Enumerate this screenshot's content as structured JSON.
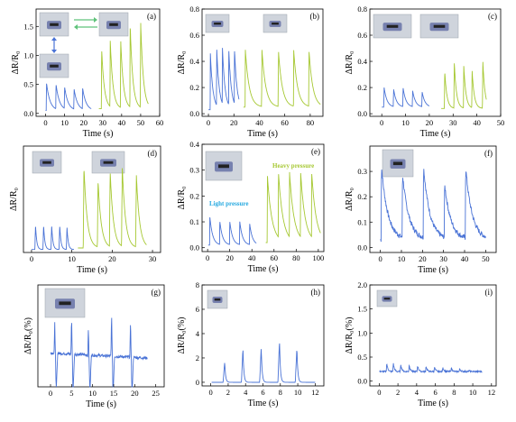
{
  "colors": {
    "blue": "#4a73d6",
    "green": "#a6c832",
    "axis": "#000000",
    "arrow_green": "#5fc27a",
    "arrow_blue": "#4a73d6"
  },
  "chart_data": [
    {
      "type": "line",
      "panel_label": "(a)",
      "xlabel": "Time (s)",
      "ylabel": "ΔR/R₀",
      "xlim": [
        -5,
        60
      ],
      "ylim": [
        -0.05,
        1.8
      ],
      "xticks": [
        0,
        10,
        20,
        30,
        40,
        50,
        60
      ],
      "yticks": [
        0.0,
        0.5,
        1.0,
        1.5
      ],
      "ytick_labels": [
        "0.0",
        "0.5",
        "1.0",
        "1.5"
      ],
      "photos": [
        "finger-bending-photo",
        "finger-straight-photo",
        "finger-grip-photo"
      ],
      "arrows": true,
      "series": [
        {
          "color": "blue",
          "baseline": 0.05,
          "decay": 1.8,
          "peaks": [
            [
              0.5,
              0.52
            ],
            [
              5.5,
              0.47
            ],
            [
              10,
              0.42
            ],
            [
              15,
              0.39
            ],
            [
              19.5,
              0.4
            ]
          ],
          "x_end": 24
        },
        {
          "color": "green",
          "baseline": 0.08,
          "decay": 1.4,
          "peaks": [
            [
              29.5,
              1.1
            ],
            [
              34,
              1.22
            ],
            [
              39.5,
              1.25
            ],
            [
              44.5,
              1.48
            ],
            [
              50,
              1.55
            ]
          ],
          "x_end": 54
        }
      ]
    },
    {
      "type": "line",
      "panel_label": "(b)",
      "xlabel": "Time (s)",
      "ylabel": "ΔR/R₀",
      "xlim": [
        -5,
        90
      ],
      "ylim": [
        -0.02,
        0.8
      ],
      "xticks": [
        0,
        20,
        40,
        60,
        80
      ],
      "yticks": [
        0.0,
        0.2,
        0.4,
        0.6,
        0.8
      ],
      "ytick_labels": [
        "0.0",
        "0.2",
        "0.4",
        "0.6",
        "0.8"
      ],
      "photos": [
        "wrist-bent-photo",
        "wrist-flat-photo"
      ],
      "series": [
        {
          "color": "blue",
          "baseline": 0.03,
          "decay": 2.0,
          "peaks": [
            [
              1.5,
              0.46
            ],
            [
              6.5,
              0.46
            ],
            [
              11,
              0.46
            ],
            [
              16,
              0.45
            ],
            [
              20.5,
              0.44
            ]
          ],
          "x_end": 24
        },
        {
          "color": "green",
          "baseline": 0.05,
          "decay": 3.0,
          "peaks": [
            [
              29,
              0.49
            ],
            [
              42,
              0.49
            ],
            [
              55,
              0.48
            ],
            [
              67,
              0.48
            ],
            [
              79,
              0.48
            ]
          ],
          "x_end": 88
        }
      ]
    },
    {
      "type": "line",
      "panel_label": "(c)",
      "xlabel": "Time (s)",
      "ylabel": "ΔR/R₀",
      "xlim": [
        -5,
        50
      ],
      "ylim": [
        -0.02,
        0.8
      ],
      "xticks": [
        0,
        10,
        20,
        30,
        40,
        50
      ],
      "yticks": [
        0.0,
        0.2,
        0.4,
        0.6,
        0.8
      ],
      "ytick_labels": [
        "0.0",
        "0.2",
        "0.4",
        "0.6",
        "0.8"
      ],
      "photos": [
        "elbow-bent-photo",
        "elbow-straight-photo"
      ],
      "series": [
        {
          "color": "blue",
          "baseline": 0.05,
          "decay": 1.2,
          "peaks": [
            [
              1,
              0.2
            ],
            [
              5,
              0.18
            ],
            [
              9,
              0.19
            ],
            [
              13,
              0.17
            ],
            [
              17,
              0.16
            ]
          ],
          "x_end": 20
        },
        {
          "color": "green",
          "baseline": 0.04,
          "decay": 0.9,
          "peaks": [
            [
              26.5,
              0.32
            ],
            [
              30.5,
              0.39
            ],
            [
              34.5,
              0.36
            ],
            [
              38,
              0.32
            ],
            [
              42.5,
              0.4
            ]
          ],
          "x_end": 44
        }
      ]
    },
    {
      "type": "line",
      "panel_label": "(d)",
      "xlabel": "Time (s)",
      "ylabel": "ΔR/R₀",
      "xlim": [
        -2,
        32
      ],
      "ylim": [
        -0.05,
        3.5
      ],
      "xticks": [
        0,
        10,
        20,
        30
      ],
      "yticks": [],
      "ytick_labels": [],
      "photos": [
        "knee-bent-photo",
        "knee-walking-photo"
      ],
      "series": [
        {
          "color": "blue",
          "baseline": 0.05,
          "decay": 0.3,
          "peaks": [
            [
              1,
              0.85
            ],
            [
              3,
              0.85
            ],
            [
              5,
              0.85
            ],
            [
              7,
              0.85
            ],
            [
              8.8,
              0.8
            ]
          ],
          "x_end": 10.5
        },
        {
          "color": "green",
          "baseline": 0.1,
          "decay": 0.8,
          "peaks": [
            [
              13,
              2.8
            ],
            [
              16.5,
              2.3
            ],
            [
              19.5,
              2.6
            ],
            [
              22.5,
              2.75
            ],
            [
              26,
              2.5
            ]
          ],
          "x_end": 28.5
        }
      ]
    },
    {
      "type": "line",
      "panel_label": "(e)",
      "xlabel": "Time (s)",
      "ylabel": "ΔR/R₀",
      "xlim": [
        -5,
        105
      ],
      "ylim": [
        -0.015,
        0.4
      ],
      "xticks": [
        0,
        20,
        40,
        60,
        80,
        100
      ],
      "yticks": [
        0.0,
        0.1,
        0.2,
        0.3,
        0.4
      ],
      "ytick_labels": [
        "0.0",
        "0.1",
        "0.2",
        "0.3",
        "0.4"
      ],
      "photos": [
        "hand-pressing-photo"
      ],
      "annotations": [
        {
          "text": "Light pressure",
          "color": "#26a9e0"
        },
        {
          "text": "Heavy pressure",
          "color": "#a6c832"
        }
      ],
      "series": [
        {
          "color": "blue",
          "baseline": 0.01,
          "decay": 2.5,
          "peaks": [
            [
              2,
              0.12
            ],
            [
              11,
              0.1
            ],
            [
              20,
              0.1
            ],
            [
              29,
              0.1
            ],
            [
              38,
              0.09
            ]
          ],
          "x_end": 44
        },
        {
          "color": "green",
          "baseline": 0.02,
          "decay": 4.0,
          "peaks": [
            [
              54,
              0.28
            ],
            [
              64,
              0.27
            ],
            [
              74,
              0.27
            ],
            [
              84,
              0.27
            ],
            [
              94,
              0.27
            ]
          ],
          "x_end": 102
        }
      ]
    },
    {
      "type": "line",
      "panel_label": "(f)",
      "xlabel": "Time (s)",
      "ylabel": "ΔR/R₀",
      "xlim": [
        -5,
        55
      ],
      "ylim": [
        -0.02,
        0.4
      ],
      "xticks": [
        0,
        10,
        20,
        30,
        40,
        50
      ],
      "yticks": [
        0.0,
        0.1,
        0.2,
        0.3
      ],
      "ytick_labels": [
        "0.0",
        "0.1",
        "0.2",
        "0.3"
      ],
      "photos": [
        "finger-touch-photo"
      ],
      "series": [
        {
          "color": "blue",
          "baseline": 0.03,
          "decay": 3.0,
          "noisy": true,
          "peaks": [
            [
              0.5,
              0.32
            ],
            [
              10.5,
              0.28
            ],
            [
              20.5,
              0.31
            ],
            [
              30.5,
              0.24
            ],
            [
              40.5,
              0.31
            ]
          ],
          "x_end": 50
        }
      ]
    },
    {
      "type": "line",
      "panel_label": "(g)",
      "xlabel": "Time (s)",
      "ylabel": "ΔR/R₀(%)",
      "xlim": [
        -3,
        27
      ],
      "ylim": [
        -6,
        12
      ],
      "xticks": [
        0,
        5,
        10,
        15,
        20,
        25
      ],
      "yticks": [],
      "ytick_labels": [],
      "photos": [
        "eye-blink-photo"
      ],
      "series": [
        {
          "color": "blue",
          "baseline": 0,
          "decay": 0.25,
          "blink": true,
          "peaks": [
            [
              1,
              5.5
            ],
            [
              5,
              6.5
            ],
            [
              9,
              4.8
            ],
            [
              14.5,
              7.5
            ],
            [
              19,
              6.5
            ]
          ],
          "x_end": 23
        }
      ]
    },
    {
      "type": "line",
      "panel_label": "(h)",
      "xlabel": "Time (s)",
      "ylabel": "ΔR/R₀(%)",
      "xlim": [
        -1,
        13
      ],
      "ylim": [
        -0.3,
        8
      ],
      "xticks": [
        0,
        2,
        4,
        6,
        8,
        10,
        12
      ],
      "yticks": [
        0,
        2,
        4,
        6,
        8
      ],
      "ytick_labels": [
        "0",
        "2",
        "4",
        "6",
        "8"
      ],
      "photos": [
        "throat-swallow-photo"
      ],
      "series": [
        {
          "color": "blue",
          "baseline": 0,
          "decay": 0.1,
          "peaks": [
            [
              1.6,
              1.7
            ],
            [
              3.7,
              2.8
            ],
            [
              5.8,
              2.9
            ],
            [
              7.9,
              3.5
            ],
            [
              9.9,
              2.9
            ]
          ],
          "x_end": 12
        }
      ]
    },
    {
      "type": "line",
      "panel_label": "(i)",
      "xlabel": "Time (s)",
      "ylabel": "ΔR/R₀(%)",
      "xlim": [
        -1,
        12.5
      ],
      "ylim": [
        -0.1,
        2.0
      ],
      "xticks": [
        0,
        2,
        4,
        6,
        8,
        10,
        12
      ],
      "yticks": [
        0.0,
        0.5,
        1.0,
        1.5,
        2.0
      ],
      "ytick_labels": [
        "0.0",
        "0.5",
        "1.0",
        "1.5",
        "2.0"
      ],
      "photos": [
        "wrist-pulse-photo"
      ],
      "series": [
        {
          "color": "blue",
          "baseline": 0.2,
          "decay": 0.12,
          "pulse": true,
          "peaks": [
            [
              0.8,
              0.38
            ],
            [
              1.5,
              0.38
            ],
            [
              2.3,
              0.35
            ],
            [
              3.2,
              0.34
            ],
            [
              4.1,
              0.33
            ],
            [
              5,
              0.32
            ],
            [
              5.9,
              0.3
            ],
            [
              6.8,
              0.29
            ],
            [
              7.7,
              0.28
            ],
            [
              8.6,
              0.26
            ],
            [
              9.6,
              0.22
            ]
          ],
          "x_end": 11
        }
      ]
    }
  ]
}
